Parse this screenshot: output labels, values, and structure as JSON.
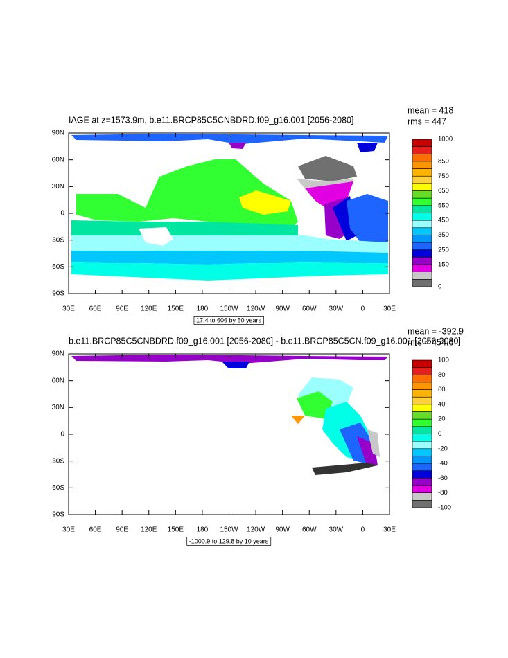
{
  "panels": [
    {
      "title": "IAGE at z=1573.9m, b.e11.BRCP85C5CNBDRD.f09_g16.001 [2056-2080]",
      "mean": "mean = 418",
      "rms": "rms = 447",
      "info": "17.4 to 606 by 50 years",
      "colorbar": {
        "colors": [
          "#c80000",
          "#e61e1e",
          "#ff6e00",
          "#ff9600",
          "#ffb400",
          "#ffd23c",
          "#ffff00",
          "#64dc28",
          "#32ff32",
          "#00e6a0",
          "#00ffe6",
          "#9bffff",
          "#00c8ff",
          "#0096ff",
          "#1e64ff",
          "#0000dc",
          "#9600c8",
          "#e100e1",
          "#c8c8c8",
          "#707070"
        ],
        "labels": [
          1000,
          850,
          750,
          650,
          550,
          450,
          350,
          250,
          150,
          0
        ]
      }
    },
    {
      "title": "b.e11.BRCP85C5CNBDRD.f09_g16.001 [2056-2080] - b.e11.BRCP85C5CN.f09_g16.001 [2056-2080]",
      "mean": "mean = -392.9",
      "rms": "rms = 454.6",
      "info": "-1000.9 to 129.8 by 10 years",
      "colorbar": {
        "colors": [
          "#c80000",
          "#e61e1e",
          "#ff6e00",
          "#ff9600",
          "#ffb400",
          "#ffd23c",
          "#ffff00",
          "#64dc28",
          "#32ff32",
          "#00e6a0",
          "#00ffe6",
          "#9bffff",
          "#00c8ff",
          "#0096ff",
          "#1e64ff",
          "#0000dc",
          "#9600c8",
          "#e100e1",
          "#c8c8c8",
          "#707070"
        ],
        "labels": [
          100,
          80,
          60,
          40,
          20,
          0,
          -20,
          -40,
          -60,
          -80,
          -100
        ]
      }
    }
  ],
  "lat_labels": [
    "90N",
    "60N",
    "30N",
    "0",
    "30S",
    "60S",
    "90S"
  ],
  "lon_labels": [
    "30E",
    "60E",
    "90E",
    "120E",
    "150E",
    "180",
    "150W",
    "120W",
    "90W",
    "60W",
    "30W",
    "0",
    "30E"
  ]
}
